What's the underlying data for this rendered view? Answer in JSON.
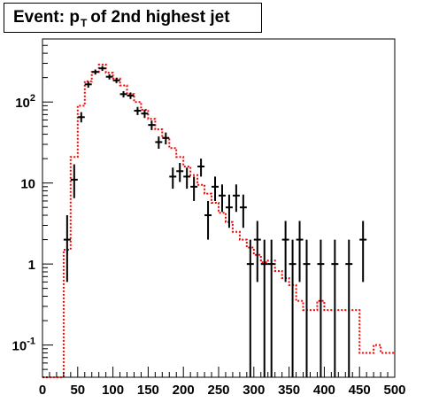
{
  "title": {
    "prefix": "Event: p",
    "subscript": "T",
    "suffix": "of 2nd highest jet"
  },
  "chart_data": {
    "type": "histogram",
    "title": "Event: p_T of 2nd highest jet",
    "xlabel": "",
    "ylabel": "",
    "xlim": [
      0,
      500
    ],
    "ylim": [
      0.04,
      600
    ],
    "ylog": true,
    "grid": false,
    "x_ticks": [
      "0",
      "50",
      "100",
      "150",
      "200",
      "250",
      "300",
      "350",
      "400",
      "450",
      "500"
    ],
    "y_ticks": [
      {
        "value": 0.1,
        "label": "10",
        "exp": "-1"
      },
      {
        "value": 1,
        "label": "1",
        "exp": ""
      },
      {
        "value": 10,
        "label": "10",
        "exp": ""
      },
      {
        "value": 100,
        "label": "10",
        "exp": "2"
      }
    ],
    "bin_width": 10,
    "series": [
      {
        "style": "red-dotted-step",
        "color": "#ff0000",
        "bin_edges_start": 0,
        "values": [
          0.04,
          0.04,
          0.04,
          1.5,
          21,
          90,
          180,
          235,
          290,
          230,
          195,
          160,
          125,
          100,
          80,
          62,
          46,
          36,
          27,
          21,
          16,
          12.5,
          9.5,
          7.4,
          5.7,
          4.3,
          3.3,
          2.5,
          2.0,
          1.6,
          1.3,
          1.05,
          1.1,
          0.82,
          0.67,
          0.55,
          0.35,
          0.27,
          0.27,
          0.35,
          0.27,
          0.27,
          0.27,
          0.27,
          0.27,
          0.08,
          0.08,
          0.1,
          0.08,
          0.08
        ]
      },
      {
        "style": "black-crosses",
        "color": "#000000",
        "points": [
          {
            "x": 35,
            "y": 2,
            "ylo": 0.6,
            "yhi": 4
          },
          {
            "x": 45,
            "y": 11,
            "ylo": 6.5,
            "yhi": 17
          },
          {
            "x": 55,
            "y": 65,
            "ylo": 56,
            "yhi": 75
          },
          {
            "x": 65,
            "y": 165,
            "ylo": 150,
            "yhi": 180
          },
          {
            "x": 75,
            "y": 235,
            "ylo": 218,
            "yhi": 252
          },
          {
            "x": 85,
            "y": 260,
            "ylo": 242,
            "yhi": 278
          },
          {
            "x": 95,
            "y": 205,
            "ylo": 190,
            "yhi": 220
          },
          {
            "x": 105,
            "y": 185,
            "ylo": 171,
            "yhi": 199
          },
          {
            "x": 115,
            "y": 125,
            "ylo": 114,
            "yhi": 136
          },
          {
            "x": 125,
            "y": 120,
            "ylo": 109,
            "yhi": 131
          },
          {
            "x": 135,
            "y": 78,
            "ylo": 69,
            "yhi": 87
          },
          {
            "x": 145,
            "y": 72,
            "ylo": 63.5,
            "yhi": 80.5
          },
          {
            "x": 155,
            "y": 52,
            "ylo": 45,
            "yhi": 59
          },
          {
            "x": 165,
            "y": 32,
            "ylo": 26.5,
            "yhi": 37.5
          },
          {
            "x": 175,
            "y": 36,
            "ylo": 30,
            "yhi": 42
          },
          {
            "x": 185,
            "y": 12,
            "ylo": 8.5,
            "yhi": 15.5
          },
          {
            "x": 195,
            "y": 14,
            "ylo": 10.3,
            "yhi": 17.7
          },
          {
            "x": 205,
            "y": 12,
            "ylo": 8.5,
            "yhi": 15.5
          },
          {
            "x": 215,
            "y": 9,
            "ylo": 6,
            "yhi": 12
          },
          {
            "x": 225,
            "y": 16,
            "ylo": 12,
            "yhi": 20
          },
          {
            "x": 235,
            "y": 4,
            "ylo": 2,
            "yhi": 6
          },
          {
            "x": 245,
            "y": 9,
            "ylo": 6,
            "yhi": 12
          },
          {
            "x": 255,
            "y": 7,
            "ylo": 4.4,
            "yhi": 9.6
          },
          {
            "x": 265,
            "y": 5,
            "ylo": 2.8,
            "yhi": 7.2
          },
          {
            "x": 275,
            "y": 7,
            "ylo": 4.4,
            "yhi": 9.6
          },
          {
            "x": 285,
            "y": 5,
            "ylo": 2.8,
            "yhi": 7.2
          },
          {
            "x": 295,
            "y": 1,
            "ylo": 0.04,
            "yhi": 2
          },
          {
            "x": 305,
            "y": 2,
            "ylo": 0.6,
            "yhi": 3.4
          },
          {
            "x": 315,
            "y": 1,
            "ylo": 0.04,
            "yhi": 2
          },
          {
            "x": 325,
            "y": 1,
            "ylo": 0.04,
            "yhi": 2
          },
          {
            "x": 345,
            "y": 2,
            "ylo": 0.6,
            "yhi": 3.4
          },
          {
            "x": 355,
            "y": 1,
            "ylo": 0.04,
            "yhi": 2
          },
          {
            "x": 365,
            "y": 2,
            "ylo": 0.6,
            "yhi": 3.4
          },
          {
            "x": 375,
            "y": 1,
            "ylo": 0.04,
            "yhi": 2
          },
          {
            "x": 395,
            "y": 1,
            "ylo": 0.04,
            "yhi": 2
          },
          {
            "x": 415,
            "y": 1,
            "ylo": 0.04,
            "yhi": 2
          },
          {
            "x": 435,
            "y": 1,
            "ylo": 0.04,
            "yhi": 2
          },
          {
            "x": 455,
            "y": 2,
            "ylo": 0.6,
            "yhi": 3.4
          }
        ]
      }
    ]
  }
}
